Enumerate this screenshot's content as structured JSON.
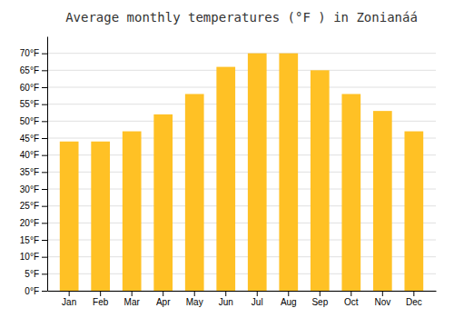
{
  "chart_data": {
    "type": "bar",
    "title": "Average monthly temperatures (°F ) in Zonianáá",
    "categories": [
      "Jan",
      "Feb",
      "Mar",
      "Apr",
      "May",
      "Jun",
      "Jul",
      "Aug",
      "Sep",
      "Oct",
      "Nov",
      "Dec"
    ],
    "values": [
      44,
      44,
      47,
      52,
      58,
      66,
      70,
      70,
      65,
      58,
      53,
      47
    ],
    "color": "#FFC125",
    "ylim": [
      0,
      75
    ],
    "yticks": [
      {
        "value": 0,
        "label": "0°F"
      },
      {
        "value": 5,
        "label": "5°F"
      },
      {
        "value": 10,
        "label": "10°F"
      },
      {
        "value": 15,
        "label": "15°F"
      },
      {
        "value": 20,
        "label": "20°F"
      },
      {
        "value": 25,
        "label": "25°F"
      },
      {
        "value": 30,
        "label": "30°F"
      },
      {
        "value": 35,
        "label": "35°F"
      },
      {
        "value": 40,
        "label": "40°F"
      },
      {
        "value": 45,
        "label": "45°F"
      },
      {
        "value": 50,
        "label": "50°F"
      },
      {
        "value": 55,
        "label": "55°F"
      },
      {
        "value": 60,
        "label": "60°F"
      },
      {
        "value": 65,
        "label": "65°F"
      },
      {
        "value": 70,
        "label": "70°F"
      }
    ],
    "grid": true
  }
}
